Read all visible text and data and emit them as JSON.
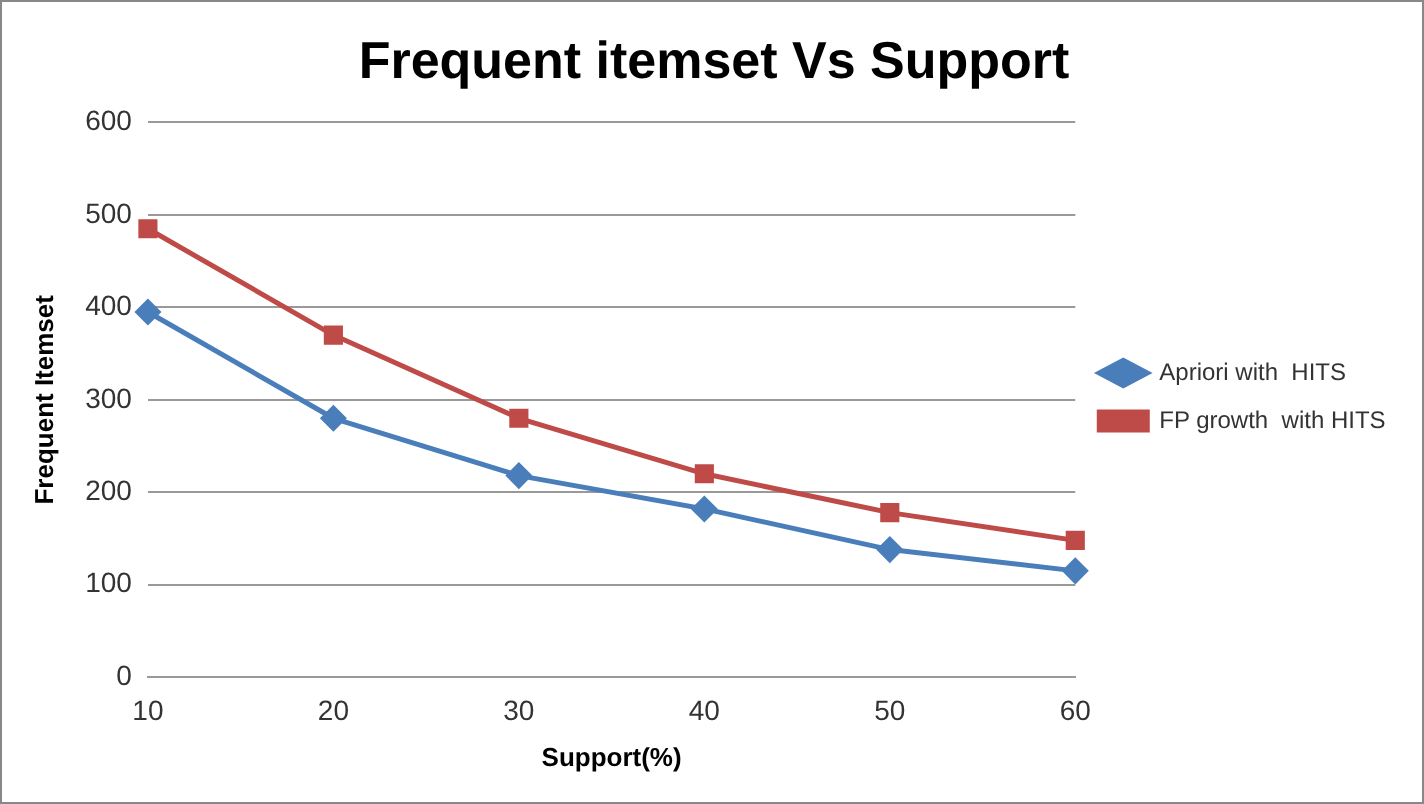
{
  "chart_data": {
    "type": "line",
    "title": "Frequent itemset Vs Support",
    "xlabel": "Support(%)",
    "ylabel": "Frequent Itemset",
    "categories": [
      "10",
      "20",
      "30",
      "40",
      "50",
      "60"
    ],
    "series": [
      {
        "name": "Apriori with  HITS",
        "color": "#4a7ebb",
        "marker": "diamond",
        "values": [
          395,
          280,
          218,
          182,
          138,
          115
        ]
      },
      {
        "name": "FP growth  with HITS",
        "color": "#be4b48",
        "marker": "square",
        "values": [
          485,
          370,
          280,
          220,
          178,
          148
        ]
      }
    ],
    "ylim": [
      0,
      600
    ],
    "yticks": [
      0,
      100,
      200,
      300,
      400,
      500,
      600
    ],
    "grid": "y",
    "legend": "right",
    "line_style": "solid"
  }
}
